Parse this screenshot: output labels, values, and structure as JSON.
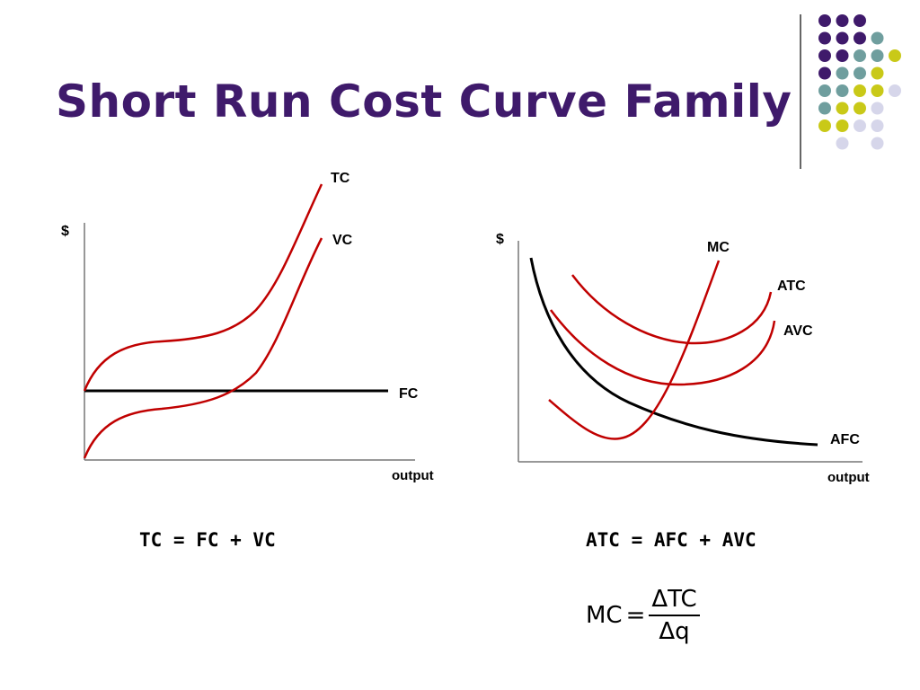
{
  "slide": {
    "title": "Short Run Cost Curve Family",
    "title_color": "#3f1a6b"
  },
  "colors": {
    "purple": "#3f1a6b",
    "teal": "#6f9e9e",
    "yellow": "#c9c918",
    "lavender": "#d6d6ea",
    "curve_red": "#c00000",
    "curve_black": "#000000"
  },
  "decor": {
    "dot_grid": [
      [
        "purple",
        "purple",
        "purple",
        null,
        null
      ],
      [
        "purple",
        "purple",
        "purple",
        "teal",
        null
      ],
      [
        "purple",
        "purple",
        "teal",
        "teal",
        "yellow"
      ],
      [
        "purple",
        "teal",
        "teal",
        "yellow",
        null
      ],
      [
        "teal",
        "teal",
        "yellow",
        "yellow",
        "lavender"
      ],
      [
        "teal",
        "yellow",
        "yellow",
        "lavender",
        null
      ],
      [
        "yellow",
        "yellow",
        "lavender",
        "lavender",
        null
      ],
      [
        null,
        "lavender",
        null,
        "lavender",
        null
      ]
    ]
  },
  "left_graph": {
    "y_axis_label": "$",
    "x_axis_label": "output",
    "curves": [
      {
        "name": "TC",
        "color": "curve_red"
      },
      {
        "name": "VC",
        "color": "curve_red"
      },
      {
        "name": "FC",
        "color": "curve_black"
      }
    ],
    "formula": "TC = FC + VC"
  },
  "right_graph": {
    "y_axis_label": "$",
    "x_axis_label": "output",
    "curves": [
      {
        "name": "MC",
        "color": "curve_red"
      },
      {
        "name": "ATC",
        "color": "curve_red"
      },
      {
        "name": "AVC",
        "color": "curve_red"
      },
      {
        "name": "AFC",
        "color": "curve_black"
      }
    ],
    "formula": "ATC = AFC + AVC"
  },
  "mc_formula": {
    "lhs": "MC",
    "equals": "=",
    "numerator": "ΔTC",
    "denominator": "Δq"
  }
}
